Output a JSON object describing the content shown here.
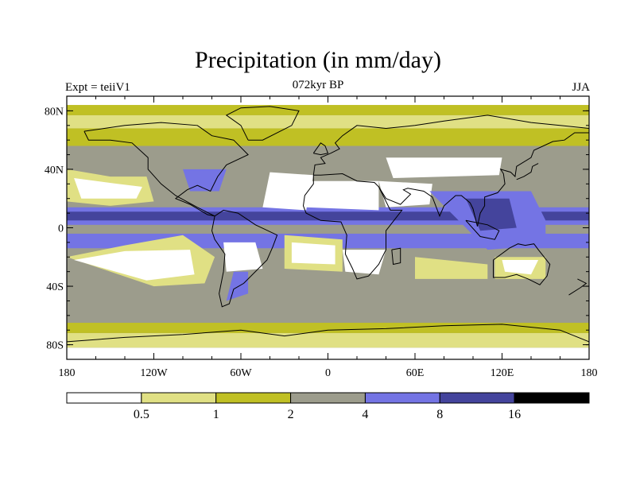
{
  "title": "Precipitation (in mm/day)",
  "left_string": "Expt = teiiV1",
  "center_string": "072kyr BP",
  "right_string": "JJA",
  "map": {
    "projection": "cylindrical-equidistant",
    "lon_range": [
      -180,
      180
    ],
    "lat_range": [
      -90,
      90
    ],
    "lat_ticks": [
      {
        "value": 80,
        "label": "80N"
      },
      {
        "value": 40,
        "label": "40N"
      },
      {
        "value": 0,
        "label": "0"
      },
      {
        "value": -40,
        "label": "40S"
      },
      {
        "value": -80,
        "label": "80S"
      }
    ],
    "lon_ticks": [
      {
        "value": -180,
        "label": "180"
      },
      {
        "value": -120,
        "label": "120W"
      },
      {
        "value": -60,
        "label": "60W"
      },
      {
        "value": 0,
        "label": "0"
      },
      {
        "value": 60,
        "label": "60E"
      },
      {
        "value": 120,
        "label": "120E"
      },
      {
        "value": 180,
        "label": "180"
      }
    ]
  },
  "colorbar": {
    "levels": [
      "0.5",
      "1",
      "2",
      "4",
      "8",
      "16"
    ],
    "colors": [
      "#ffffff",
      "#e0e084",
      "#c0c024",
      "#9c9c8c",
      "#7474e4",
      "#44449c",
      "#000000"
    ]
  }
}
